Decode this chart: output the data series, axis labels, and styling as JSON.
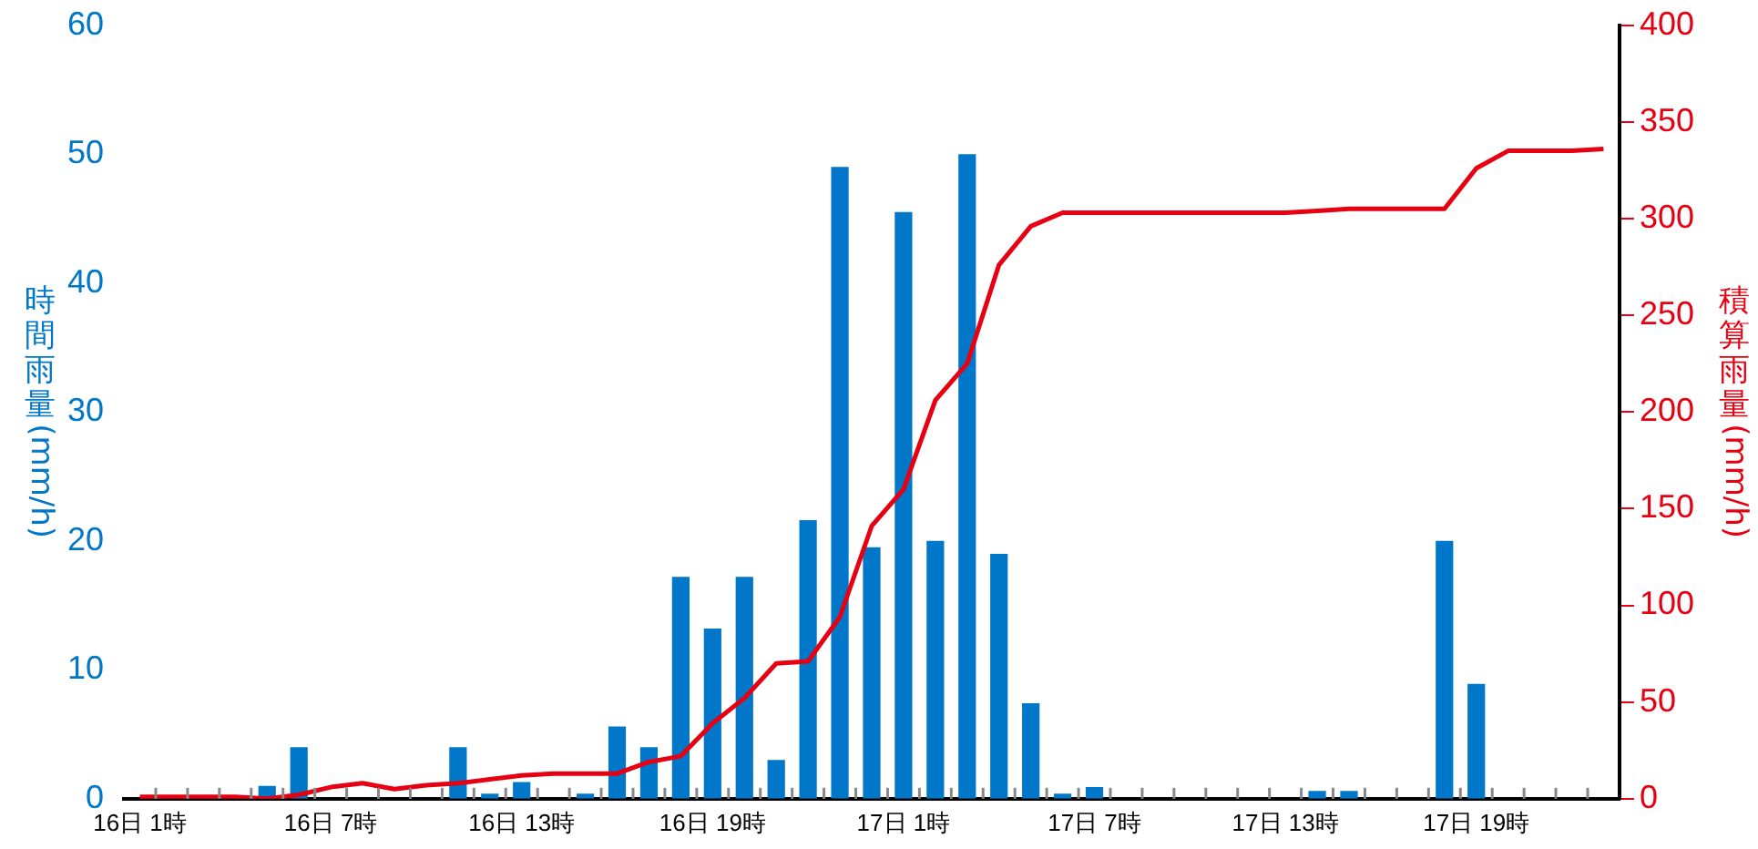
{
  "chart_data": {
    "type": "bar",
    "ylabel": "時間雨量(mm/h)",
    "y2label": "積算雨量(mm/h)",
    "categories": [
      "16日 1時",
      null,
      null,
      null,
      null,
      null,
      "16日 7時",
      null,
      null,
      null,
      null,
      null,
      "16日 13時",
      null,
      null,
      null,
      null,
      null,
      "16日 19時",
      null,
      null,
      null,
      null,
      null,
      "17日 1時",
      null,
      null,
      null,
      null,
      null,
      "17日 7時",
      null,
      null,
      null,
      null,
      null,
      "17日 13時",
      null,
      null,
      null,
      null,
      null,
      "17日 19時",
      null,
      null,
      null,
      null
    ],
    "series": [
      {
        "color": "#0077c8",
        "values": [
          0,
          0,
          0,
          0,
          1,
          4,
          0,
          0,
          0,
          0,
          4,
          0.4,
          1.3,
          0,
          0.4,
          5.6,
          4,
          17.2,
          13.2,
          17.2,
          3,
          21.6,
          49,
          19.5,
          45.5,
          20,
          50,
          19,
          7.4,
          0.4,
          0.9,
          0,
          0,
          0,
          0,
          0,
          0,
          0.6,
          0.6,
          0,
          0,
          20,
          8.9,
          0,
          0,
          0,
          0
        ]
      },
      {
        "type": "line",
        "axis": "y2",
        "color": "#e60012",
        "values": [
          1,
          1,
          1,
          1,
          0,
          2,
          6,
          8,
          5,
          7,
          8,
          10,
          12,
          13,
          13,
          13,
          19,
          22,
          39,
          52,
          70,
          71,
          94,
          141,
          160,
          206,
          225,
          276,
          296,
          303,
          303,
          303,
          303,
          303,
          303,
          303,
          303,
          304,
          305,
          305,
          305,
          305,
          326,
          335,
          335,
          335,
          336
        ]
      }
    ],
    "ylim": [
      0,
      60
    ],
    "yticks": [
      0,
      10,
      20,
      30,
      40,
      50,
      60
    ],
    "y2lim": [
      0,
      400
    ],
    "y2ticks": [
      0,
      50,
      100,
      150,
      200,
      250,
      300,
      350,
      400
    ],
    "grid": false,
    "legend": false,
    "marker": "none",
    "line_style": "solid"
  }
}
